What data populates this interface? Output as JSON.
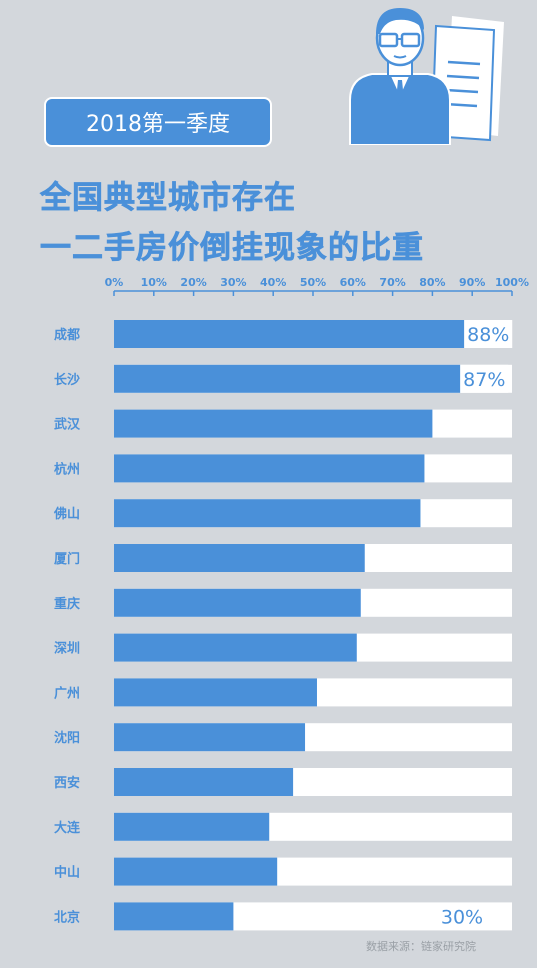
{
  "badge": "2018第一季度",
  "title_lines": [
    "全国典型城市存在",
    "一二手房价倒挂现象的比重"
  ],
  "source": "数据来源：链家研究院",
  "colors": {
    "bar": "#4a90d9",
    "track": "#ffffff",
    "background": "#d3d7dc",
    "label": "#4a90d9"
  },
  "illustration_icon": "businessman-with-document-icon",
  "chart_data": {
    "type": "bar",
    "orientation": "horizontal",
    "title": "全国典型城市存在一二手房价倒挂现象的比重",
    "x_ticks": [
      "0%",
      "10%",
      "20%",
      "30%",
      "40%",
      "50%",
      "60%",
      "70%",
      "80%",
      "90%",
      "100%"
    ],
    "xlim": [
      0,
      100
    ],
    "grid": false,
    "categories": [
      "成都",
      "长沙",
      "武汉",
      "杭州",
      "佛山",
      "厦门",
      "重庆",
      "深圳",
      "广州",
      "沈阳",
      "西安",
      "大连",
      "中山",
      "北京"
    ],
    "values": [
      88,
      87,
      80,
      78,
      77,
      63,
      62,
      61,
      51,
      48,
      45,
      39,
      41,
      30
    ],
    "data_labels": [
      "88%",
      "87%",
      "",
      "",
      "",
      "",
      "",
      "",
      "",
      "",
      "",
      "",
      "",
      "30%"
    ]
  }
}
